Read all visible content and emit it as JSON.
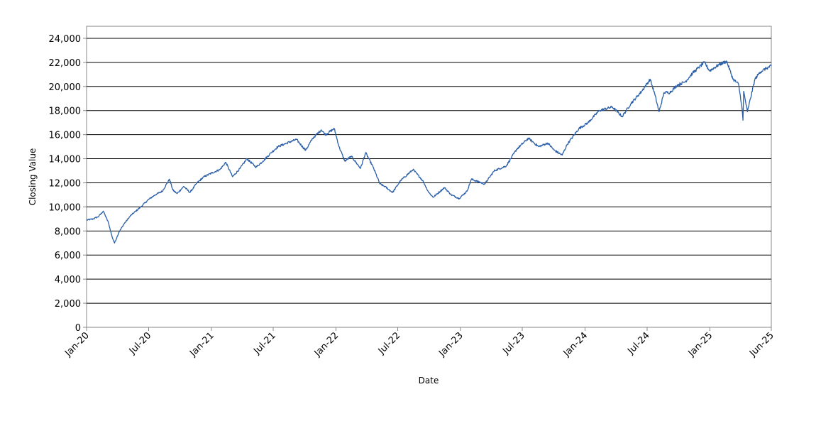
{
  "chart_data": {
    "type": "line",
    "title": "",
    "xlabel": "Date",
    "ylabel": "Closing Value",
    "ylim": [
      0,
      25000
    ],
    "yticks": [
      "0",
      "2,000",
      "4,000",
      "6,000",
      "8,000",
      "10,000",
      "12,000",
      "14,000",
      "16,000",
      "18,000",
      "20,000",
      "22,000",
      "24,000"
    ],
    "xticks": [
      "Jan-20",
      "Jul-20",
      "Jan-21",
      "Jul-21",
      "Jan-22",
      "Jul-22",
      "Jan-23",
      "Jul-23",
      "Jan-24",
      "Jul-24",
      "Jan-25",
      "Jun-25"
    ],
    "grid": "horizontal",
    "legend": "none",
    "line_color": "#2b5fa8",
    "series": [
      {
        "name": "",
        "x": [
          "2020-01-01",
          "2020-01-20",
          "2020-02-05",
          "2020-02-19",
          "2020-03-05",
          "2020-03-16",
          "2020-03-23",
          "2020-04-05",
          "2020-04-20",
          "2020-05-10",
          "2020-06-08",
          "2020-06-30",
          "2020-07-20",
          "2020-08-10",
          "2020-08-31",
          "2020-09-10",
          "2020-09-22",
          "2020-10-12",
          "2020-10-30",
          "2020-11-20",
          "2020-12-10",
          "2021-01-01",
          "2021-01-26",
          "2021-02-12",
          "2021-03-04",
          "2021-03-26",
          "2021-04-15",
          "2021-05-12",
          "2021-06-01",
          "2021-06-25",
          "2021-07-15",
          "2021-08-10",
          "2021-09-07",
          "2021-10-04",
          "2021-10-25",
          "2021-11-19",
          "2021-12-01",
          "2021-12-27",
          "2022-01-10",
          "2022-01-27",
          "2022-02-15",
          "2022-03-14",
          "2022-03-29",
          "2022-04-20",
          "2022-05-10",
          "2022-05-24",
          "2022-06-16",
          "2022-07-10",
          "2022-08-15",
          "2022-09-12",
          "2022-09-30",
          "2022-10-13",
          "2022-11-15",
          "2022-12-05",
          "2022-12-28",
          "2023-01-20",
          "2023-02-02",
          "2023-03-13",
          "2023-04-10",
          "2023-05-15",
          "2023-06-15",
          "2023-07-19",
          "2023-08-18",
          "2023-09-14",
          "2023-10-03",
          "2023-10-26",
          "2023-11-10",
          "2023-12-14",
          "2024-01-10",
          "2024-02-12",
          "2024-03-21",
          "2024-04-19",
          "2024-05-15",
          "2024-06-15",
          "2024-07-10",
          "2024-07-24",
          "2024-08-05",
          "2024-08-20",
          "2024-09-06",
          "2024-09-27",
          "2024-10-21",
          "2024-11-11",
          "2024-12-16",
          "2024-12-31",
          "2025-01-27",
          "2025-02-19",
          "2025-03-10",
          "2025-03-26",
          "2025-04-04",
          "2025-04-08",
          "2025-04-10",
          "2025-04-21",
          "2025-05-13",
          "2025-05-28",
          "2025-06-15",
          "2025-06-30"
        ],
        "values": [
          8900,
          9000,
          9200,
          9650,
          8700,
          7500,
          7000,
          7900,
          8600,
          9300,
          10000,
          10600,
          11000,
          11300,
          12300,
          11400,
          11100,
          11700,
          11200,
          12000,
          12500,
          12800,
          13100,
          13700,
          12500,
          13200,
          14000,
          13300,
          13800,
          14500,
          15000,
          15300,
          15600,
          14700,
          15700,
          16400,
          16000,
          16500,
          15000,
          13800,
          14200,
          13200,
          14500,
          13300,
          11900,
          11700,
          11200,
          12200,
          13100,
          12200,
          11200,
          10800,
          11600,
          11000,
          10700,
          11300,
          12300,
          11900,
          13000,
          13400,
          14800,
          15700,
          15000,
          15300,
          14700,
          14300,
          15200,
          16500,
          17000,
          18000,
          18300,
          17500,
          18600,
          19600,
          20600,
          19300,
          17900,
          19500,
          19500,
          20100,
          20400,
          21100,
          22000,
          21300,
          21800,
          22100,
          20600,
          20200,
          18500,
          17200,
          19600,
          17900,
          20600,
          21200,
          21500,
          21700
        ]
      }
    ]
  }
}
